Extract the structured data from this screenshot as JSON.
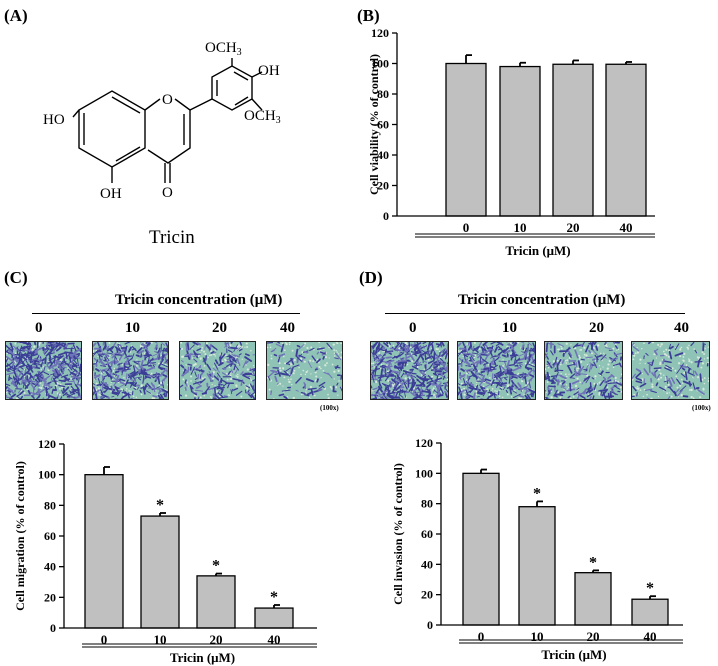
{
  "panels": {
    "a": {
      "label": "(A)",
      "compound": "Tricin",
      "atoms": {
        "ho_left": "HO",
        "ho_bottom": "OH",
        "ring_o": "O",
        "carbonyl_o": "O",
        "ome_top": "OCH",
        "ome_top_sub": "3",
        "oh_right": "OH",
        "ome_bottom": "OCH",
        "ome_bottom_sub": "3"
      }
    },
    "b": {
      "label": "(B)"
    },
    "c": {
      "label": "(C)"
    },
    "d": {
      "label": "(D)"
    }
  },
  "micrographs": {
    "concentration_title": "Tricin concentration (μM)",
    "doses": [
      "0",
      "10",
      "20",
      "40"
    ],
    "magnification": "(100x)",
    "colors": {
      "background": "#8ec3b6",
      "cells": "#3b3d96",
      "cells_light": "#6f74b8",
      "pore": "#d7ead9"
    },
    "density": [
      1.0,
      0.75,
      0.4,
      0.15
    ]
  },
  "chart_data": [
    {
      "id": "b",
      "type": "bar",
      "categories": [
        "0",
        "10",
        "20",
        "40"
      ],
      "values": [
        100,
        98,
        99.5,
        99.5
      ],
      "errors": [
        5.5,
        2.5,
        2.5,
        1.5
      ],
      "significant": [
        false,
        false,
        false,
        false
      ],
      "ylabel": "Cell viability (% of control)",
      "xlabel": "Tricin (μM)",
      "ylim": [
        0,
        120
      ],
      "yticks": [
        0,
        20,
        40,
        60,
        80,
        100,
        120
      ],
      "bar_color": "#c0c0c0"
    },
    {
      "id": "c",
      "type": "bar",
      "categories": [
        "0",
        "10",
        "20",
        "40"
      ],
      "values": [
        100,
        73,
        34,
        13
      ],
      "errors": [
        5,
        2,
        1.5,
        2
      ],
      "significant": [
        false,
        true,
        true,
        true
      ],
      "ylabel": "Cell migration (% of control)",
      "xlabel": "Tricin (μM)",
      "ylim": [
        0,
        120
      ],
      "yticks": [
        0,
        20,
        40,
        60,
        80,
        100,
        120
      ],
      "bar_color": "#c0c0c0",
      "marker": "*"
    },
    {
      "id": "d",
      "type": "bar",
      "categories": [
        "0",
        "10",
        "20",
        "40"
      ],
      "values": [
        100,
        78,
        34.5,
        17
      ],
      "errors": [
        2.5,
        3.5,
        1.5,
        2
      ],
      "significant": [
        false,
        true,
        true,
        true
      ],
      "ylabel": "Cell invasion (% of control)",
      "xlabel": "Tricin (μM)",
      "ylim": [
        0,
        120
      ],
      "yticks": [
        0,
        20,
        40,
        60,
        80,
        100,
        120
      ],
      "bar_color": "#c0c0c0",
      "marker": "*"
    }
  ]
}
